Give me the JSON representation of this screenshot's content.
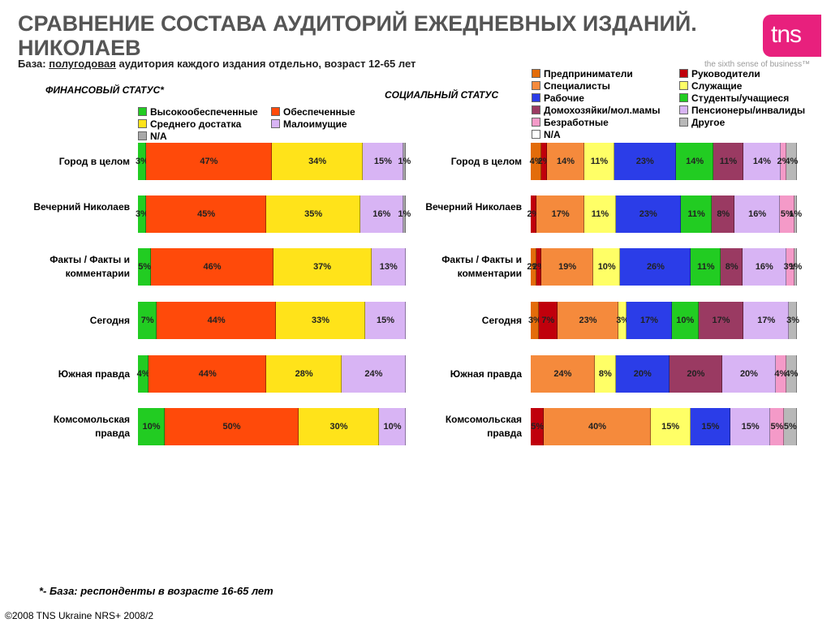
{
  "title_line1": "СРАВНЕНИЕ СОСТАВА АУДИТОРИЙ ЕЖЕДНЕВНЫХ ИЗДАНИЙ.",
  "title_line2": "НИКОЛАЕВ",
  "base_prefix": "База:",
  "base_underlined": "полугодовая",
  "base_rest": "аудитория каждого издания отдельно, возраст 12-65 лет",
  "logo_text": "tns",
  "tagline": "the sixth sense of business™",
  "footnote": "*- База: респонденты в возрасте 16-65 лет",
  "copyright": "©2008 TNS Ukraine  NRS+ 2008/2",
  "chart_data": [
    {
      "type": "bar",
      "orientation": "horizontal",
      "stacked": true,
      "normalized": true,
      "title": "ФИНАНСОВЫЙ СТАТУС*",
      "categories": [
        "Город в целом",
        "Вечерний Николаев",
        "Факты / Факты и комментарии",
        "Сегодня",
        "Южная правда",
        "Комсомольская правда"
      ],
      "legend": "top",
      "series": [
        {
          "name": "Высокообеспеченные",
          "color": "#22cc22",
          "values": [
            3,
            3,
            5,
            7,
            4,
            10
          ]
        },
        {
          "name": "Обеспеченные",
          "color": "#ff4a0a",
          "values": [
            47,
            45,
            46,
            44,
            44,
            50
          ]
        },
        {
          "name": "Среднего достатка",
          "color": "#ffe31a",
          "values": [
            34,
            35,
            37,
            33,
            28,
            30
          ]
        },
        {
          "name": "Малоимущие",
          "color": "#d8b4f4",
          "values": [
            15,
            16,
            13,
            15,
            24,
            10
          ]
        },
        {
          "name": "N/A",
          "color": "#a8a8a8",
          "values": [
            1,
            1,
            0,
            0,
            0,
            0
          ]
        }
      ]
    },
    {
      "type": "bar",
      "orientation": "horizontal",
      "stacked": true,
      "normalized": true,
      "title": "СОЦИАЛЬНЫЙ СТАТУС",
      "categories": [
        "Город в целом",
        "Вечерний Николаев",
        "Факты / Факты и комментарии",
        "Сегодня",
        "Южная правда",
        "Комсомольская правда"
      ],
      "legend": "top-right",
      "series": [
        {
          "name": "Предприниматели",
          "color": "#e36c0a",
          "values": [
            4,
            0,
            2,
            3,
            0,
            0
          ]
        },
        {
          "name": "Руководители",
          "color": "#c0000c",
          "values": [
            2,
            2,
            2,
            7,
            0,
            5
          ]
        },
        {
          "name": "Специалисты",
          "color": "#f58a3c",
          "values": [
            14,
            17,
            19,
            23,
            24,
            40
          ]
        },
        {
          "name": "Служащие",
          "color": "#ffff66",
          "values": [
            11,
            11,
            10,
            3,
            8,
            15
          ]
        },
        {
          "name": "Рабочие",
          "color": "#2b3de8",
          "values": [
            23,
            23,
            26,
            17,
            20,
            15
          ]
        },
        {
          "name": "Студенты/учащиеся",
          "color": "#22cc22",
          "values": [
            14,
            11,
            11,
            10,
            0,
            0
          ]
        },
        {
          "name": "Домохозяйки/мол.мамы",
          "color": "#9a3a62",
          "values": [
            11,
            8,
            8,
            17,
            20,
            0
          ]
        },
        {
          "name": "Пенсионеры/инвалиды",
          "color": "#d8b4f4",
          "values": [
            14,
            16,
            16,
            17,
            20,
            15
          ]
        },
        {
          "name": "Безработные",
          "color": "#f49ac8",
          "values": [
            2,
            5,
            3,
            0,
            4,
            5
          ]
        },
        {
          "name": "Другое",
          "color": "#b8b8b8",
          "values": [
            4,
            1,
            1,
            3,
            4,
            5
          ]
        },
        {
          "name": "N/A",
          "color": "#ffffff",
          "values": [
            0,
            0,
            0,
            0,
            0,
            0
          ]
        }
      ]
    }
  ]
}
